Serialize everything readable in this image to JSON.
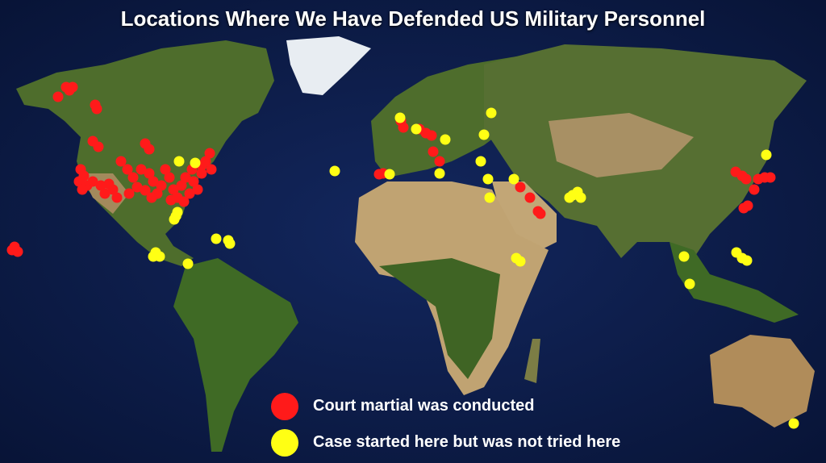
{
  "title": "Locations Where We Have Defended US Military Personnel",
  "legend": [
    {
      "label": "Court martial was conducted",
      "color": "#ff1a1a"
    },
    {
      "label": "Case started here but was not tried here",
      "color": "#ffff14"
    }
  ],
  "colors": {
    "ocean": "#0b1a45",
    "land_green": "#4a6b2a",
    "land_desert": "#b79c6c",
    "ice": "#e8edf2"
  }
}
